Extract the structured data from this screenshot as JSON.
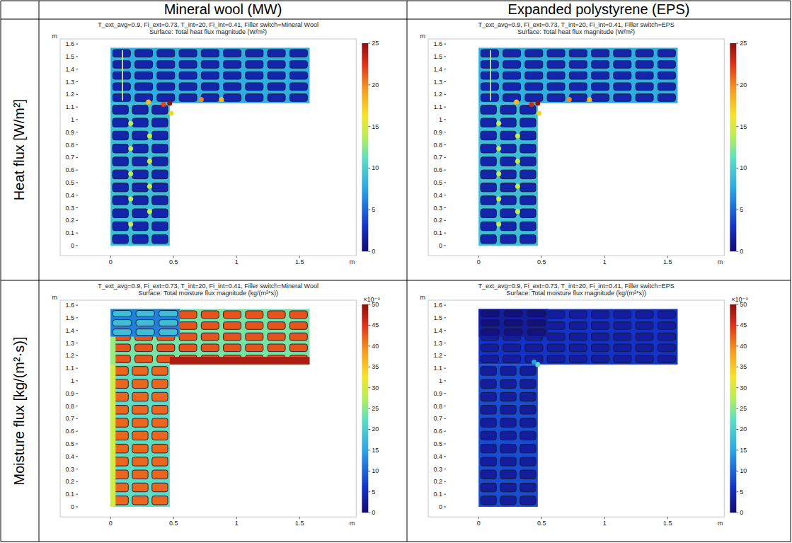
{
  "table": {
    "columns": [
      "Mineral wool (MW)",
      "Expanded polystyrene (EPS)"
    ],
    "rows": [
      "Heat flux [W/m²]",
      "Moisture flux [kg/(m²·s)]"
    ]
  },
  "chart_data": [
    {
      "type": "heatmap",
      "title": "T_ext_avg=0.9, Fi_ext=0.73, T_int=20, Fi_int=0.41, Filler switch=Mineral Wool",
      "subtitle": "Surface: Total heat flux magnitude (W/m²)",
      "x_label": "m",
      "y_label": "m",
      "xlim": [
        -0.4,
        1.95
      ],
      "ylim": [
        -0.08,
        1.64
      ],
      "xticks": [
        0,
        0.5,
        1,
        1.5
      ],
      "yticks": [
        0,
        0.1,
        0.2,
        0.3,
        0.4,
        0.5,
        0.6,
        0.7,
        0.8,
        0.9,
        1,
        1.1,
        1.2,
        1.3,
        1.4,
        1.5,
        1.6
      ],
      "colorbar": {
        "range": [
          0,
          25
        ],
        "ticks": [
          0,
          5,
          10,
          15,
          20,
          25
        ]
      },
      "blocks": [
        {
          "x": [
            0,
            0.47
          ],
          "y": [
            0,
            1.13
          ],
          "value": 2,
          "web_value": 9
        },
        {
          "x": [
            0,
            1.58
          ],
          "y": [
            1.13,
            1.57
          ],
          "value": 2,
          "web_value": 8
        }
      ],
      "cells": [
        {
          "x": [
            0.09,
            0.1
          ],
          "y": [
            1.15,
            1.55
          ],
          "value": 15
        }
      ],
      "spots": [
        {
          "x": 0.47,
          "y": 1.13,
          "value": 25
        },
        {
          "x": 0.42,
          "y": 1.12,
          "value": 22
        },
        {
          "x": 0.3,
          "y": 1.14,
          "value": 18
        },
        {
          "x": 0.72,
          "y": 1.16,
          "value": 20
        },
        {
          "x": 0.88,
          "y": 1.16,
          "value": 18
        },
        {
          "x": 0.48,
          "y": 1.05,
          "value": 17
        },
        {
          "x": 0.16,
          "y": 0.97,
          "value": 14
        },
        {
          "x": 0.31,
          "y": 0.87,
          "value": 14
        },
        {
          "x": 0.16,
          "y": 0.77,
          "value": 14
        },
        {
          "x": 0.31,
          "y": 0.67,
          "value": 14
        },
        {
          "x": 0.16,
          "y": 0.57,
          "value": 14
        },
        {
          "x": 0.31,
          "y": 0.47,
          "value": 14
        },
        {
          "x": 0.16,
          "y": 0.37,
          "value": 14
        },
        {
          "x": 0.31,
          "y": 0.27,
          "value": 14
        },
        {
          "x": 0.16,
          "y": 0.17,
          "value": 14
        }
      ]
    },
    {
      "type": "heatmap",
      "title": "T_ext_avg=0.9, Fi_ext=0.73, T_int=20, Fi_int=0.41, Filler switch=EPS",
      "subtitle": "Surface: Total heat flux magnitude (W/m²)",
      "x_label": "m",
      "y_label": "m",
      "xlim": [
        -0.4,
        1.95
      ],
      "ylim": [
        -0.08,
        1.64
      ],
      "xticks": [
        0,
        0.5,
        1,
        1.5
      ],
      "yticks": [
        0,
        0.1,
        0.2,
        0.3,
        0.4,
        0.5,
        0.6,
        0.7,
        0.8,
        0.9,
        1,
        1.1,
        1.2,
        1.3,
        1.4,
        1.5,
        1.6
      ],
      "colorbar": {
        "range": [
          0,
          25
        ],
        "ticks": [
          0,
          5,
          10,
          15,
          20,
          25
        ]
      },
      "blocks": [
        {
          "x": [
            0,
            0.47
          ],
          "y": [
            0,
            1.13
          ],
          "value": 2,
          "web_value": 9
        },
        {
          "x": [
            0,
            1.58
          ],
          "y": [
            1.13,
            1.57
          ],
          "value": 2,
          "web_value": 8
        }
      ],
      "cells": [
        {
          "x": [
            0.09,
            0.1
          ],
          "y": [
            1.15,
            1.55
          ],
          "value": 14
        }
      ],
      "spots": [
        {
          "x": 0.47,
          "y": 1.13,
          "value": 25
        },
        {
          "x": 0.42,
          "y": 1.12,
          "value": 23
        },
        {
          "x": 0.3,
          "y": 1.14,
          "value": 18
        },
        {
          "x": 0.72,
          "y": 1.16,
          "value": 20
        },
        {
          "x": 0.88,
          "y": 1.16,
          "value": 18
        },
        {
          "x": 0.48,
          "y": 1.05,
          "value": 17
        },
        {
          "x": 0.16,
          "y": 0.97,
          "value": 14
        },
        {
          "x": 0.31,
          "y": 0.87,
          "value": 14
        },
        {
          "x": 0.16,
          "y": 0.77,
          "value": 14
        },
        {
          "x": 0.31,
          "y": 0.67,
          "value": 14
        },
        {
          "x": 0.16,
          "y": 0.57,
          "value": 14
        },
        {
          "x": 0.31,
          "y": 0.47,
          "value": 14
        },
        {
          "x": 0.16,
          "y": 0.37,
          "value": 14
        },
        {
          "x": 0.31,
          "y": 0.27,
          "value": 14
        },
        {
          "x": 0.16,
          "y": 0.17,
          "value": 14
        }
      ]
    },
    {
      "type": "heatmap",
      "title": "T_ext_avg=0.9, Fi_ext=0.73, T_int=20, Fi_int=0.41, Filler switch=Mineral Wool",
      "subtitle": "Surface: Total moisture flux magnitude (kg/(m²*s))",
      "x_label": "m",
      "y_label": "m",
      "xlim": [
        -0.4,
        1.95
      ],
      "ylim": [
        -0.08,
        1.64
      ],
      "xticks": [
        0,
        0.5,
        1,
        1.5
      ],
      "yticks": [
        0,
        0.1,
        0.2,
        0.3,
        0.4,
        0.5,
        0.6,
        0.7,
        0.8,
        0.9,
        1,
        1.1,
        1.2,
        1.3,
        1.4,
        1.5,
        1.6
      ],
      "colorbar": {
        "range": [
          0,
          50
        ],
        "ticks": [
          0,
          5,
          10,
          15,
          20,
          25,
          30,
          35,
          40,
          45,
          50
        ],
        "label": "×10⁻⁹"
      },
      "blocks": [
        {
          "x": [
            0,
            0.47
          ],
          "y": [
            0,
            1.13
          ],
          "value": 42,
          "web_value": 22
        },
        {
          "x": [
            0,
            1.58
          ],
          "y": [
            1.13,
            1.57
          ],
          "value": 43,
          "web_value": 24
        },
        {
          "x": [
            0,
            0.55
          ],
          "y": [
            1.35,
            1.57
          ],
          "value": 18,
          "web_value": 12
        }
      ],
      "cells": [
        {
          "x": [
            0,
            0.04
          ],
          "y": [
            0,
            1.13
          ],
          "value": 30
        },
        {
          "x": [
            0.47,
            1.58
          ],
          "y": [
            1.13,
            1.19
          ],
          "value": 48
        },
        {
          "x": [
            0,
            0.04
          ],
          "y": [
            1.13,
            1.35
          ],
          "value": 26
        }
      ],
      "spots": []
    },
    {
      "type": "heatmap",
      "title": "T_ext_avg=0.9, Fi_ext=0.73, T_int=20, Fi_int=0.41, Filler switch=EPS",
      "subtitle": "Surface: Total moisture flux magnitude (kg/(m²*s))",
      "x_label": "m",
      "y_label": "m",
      "xlim": [
        -0.4,
        1.95
      ],
      "ylim": [
        -0.08,
        1.64
      ],
      "xticks": [
        0,
        0.5,
        1,
        1.5
      ],
      "yticks": [
        0,
        0.1,
        0.2,
        0.3,
        0.4,
        0.5,
        0.6,
        0.7,
        0.8,
        0.9,
        1,
        1.1,
        1.2,
        1.3,
        1.4,
        1.5,
        1.6
      ],
      "colorbar": {
        "range": [
          0,
          50
        ],
        "ticks": [
          0,
          5,
          10,
          15,
          20,
          25,
          30,
          35,
          40,
          45,
          50
        ],
        "label": "×10⁻⁹"
      },
      "blocks": [
        {
          "x": [
            0,
            0.47
          ],
          "y": [
            0,
            1.13
          ],
          "value": 3,
          "web_value": 8
        },
        {
          "x": [
            0,
            1.58
          ],
          "y": [
            1.13,
            1.57
          ],
          "value": 3,
          "web_value": 6
        },
        {
          "x": [
            0,
            0.55
          ],
          "y": [
            1.35,
            1.57
          ],
          "value": 1,
          "web_value": 3
        }
      ],
      "cells": [],
      "spots": [
        {
          "x": 0.47,
          "y": 1.13,
          "value": 22
        },
        {
          "x": 0.44,
          "y": 1.15,
          "value": 14
        }
      ]
    }
  ]
}
